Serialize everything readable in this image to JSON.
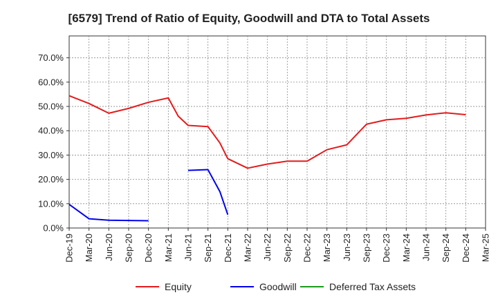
{
  "chart_data": {
    "type": "line",
    "title": "[6579]  Trend of Ratio of Equity, Goodwill and DTA to Total Assets",
    "xlabel": "",
    "ylabel": "",
    "x_ticks": [
      "Dec-19",
      "Mar-20",
      "Jun-20",
      "Sep-20",
      "Dec-20",
      "Mar-21",
      "Jun-21",
      "Sep-21",
      "Dec-21",
      "Mar-22",
      "Jun-22",
      "Sep-22",
      "Dec-22",
      "Mar-23",
      "Jun-23",
      "Sep-23",
      "Dec-23",
      "Mar-24",
      "Jun-24",
      "Sep-24",
      "Dec-24",
      "Mar-25"
    ],
    "y_ticks": [
      "0.0%",
      "10.0%",
      "20.0%",
      "30.0%",
      "40.0%",
      "50.0%",
      "60.0%",
      "70.0%"
    ],
    "ylim": [
      0,
      0.79
    ],
    "grid": true,
    "legend_position": "bottom",
    "series": [
      {
        "name": "Equity",
        "color": "#e41a1c",
        "points": [
          {
            "x": 0,
            "y": 0.544
          },
          {
            "x": 1,
            "y": 0.512
          },
          {
            "x": 2,
            "y": 0.472
          },
          {
            "x": 3,
            "y": 0.492
          },
          {
            "x": 4,
            "y": 0.517
          },
          {
            "x": 5,
            "y": 0.535
          },
          {
            "x": 5.5,
            "y": 0.46
          },
          {
            "x": 6,
            "y": 0.422
          },
          {
            "x": 7,
            "y": 0.417
          },
          {
            "x": 7.6,
            "y": 0.35
          },
          {
            "x": 8,
            "y": 0.285
          },
          {
            "x": 9,
            "y": 0.246
          },
          {
            "x": 10,
            "y": 0.263
          },
          {
            "x": 11,
            "y": 0.275
          },
          {
            "x": 12,
            "y": 0.275
          },
          {
            "x": 13,
            "y": 0.322
          },
          {
            "x": 14,
            "y": 0.342
          },
          {
            "x": 15,
            "y": 0.427
          },
          {
            "x": 16,
            "y": 0.445
          },
          {
            "x": 17,
            "y": 0.451
          },
          {
            "x": 18,
            "y": 0.465
          },
          {
            "x": 19,
            "y": 0.474
          },
          {
            "x": 20,
            "y": 0.466
          }
        ]
      },
      {
        "name": "Goodwill",
        "color": "#0000ee",
        "segments": [
          [
            {
              "x": 0,
              "y": 0.097
            },
            {
              "x": 1,
              "y": 0.038
            },
            {
              "x": 2,
              "y": 0.032
            },
            {
              "x": 3,
              "y": 0.031
            },
            {
              "x": 4,
              "y": 0.03
            }
          ],
          [
            {
              "x": 6,
              "y": 0.237
            },
            {
              "x": 7,
              "y": 0.24
            },
            {
              "x": 7.6,
              "y": 0.15
            },
            {
              "x": 8,
              "y": 0.055
            }
          ]
        ]
      },
      {
        "name": "Deferred Tax Assets",
        "color": "#1a9a1a",
        "points": []
      }
    ]
  }
}
